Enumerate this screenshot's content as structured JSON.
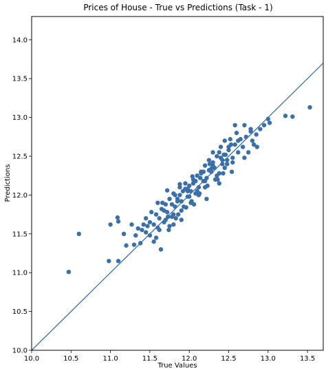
{
  "chart_data": {
    "type": "scatter",
    "title": "Prices of House - True vs Predictions (Task - 1)",
    "xlabel": "True Values",
    "ylabel": "Predictions",
    "xlim": [
      10.0,
      13.7
    ],
    "ylim": [
      10.0,
      14.3
    ],
    "xticks": [
      "10.0",
      "10.5",
      "11.0",
      "11.5",
      "12.0",
      "12.5",
      "13.0",
      "13.5"
    ],
    "yticks": [
      "10.0",
      "10.5",
      "11.0",
      "11.5",
      "12.0",
      "12.5",
      "13.0",
      "13.5",
      "14.0"
    ],
    "grid": false,
    "legend": "none",
    "marker_color": "#3a6fa8",
    "reference_line": {
      "x": [
        10.0,
        13.7
      ],
      "y": [
        10.0,
        13.7
      ],
      "color": "#3a6fa8"
    },
    "x": [
      10.47,
      10.6,
      10.98,
      11.0,
      11.09,
      11.1,
      11.1,
      11.17,
      11.2,
      11.27,
      11.3,
      11.32,
      11.35,
      11.38,
      11.4,
      11.42,
      11.45,
      11.47,
      11.5,
      11.52,
      11.55,
      11.58,
      11.6,
      11.62,
      11.65,
      11.68,
      11.7,
      11.72,
      11.75,
      11.78,
      11.8,
      11.82,
      11.85,
      11.88,
      11.9,
      11.92,
      11.95,
      11.98,
      12.0,
      12.02,
      12.05,
      12.08,
      12.1,
      12.12,
      12.15,
      12.18,
      12.2,
      12.22,
      12.25,
      12.28,
      12.3,
      12.32,
      12.35,
      12.38,
      12.4,
      12.42,
      12.45,
      12.48,
      12.5,
      12.52,
      12.55,
      12.58,
      12.6,
      12.62,
      12.65,
      12.68,
      12.7,
      12.72,
      12.75,
      12.78,
      12.8,
      12.82,
      12.85,
      12.9,
      12.95,
      13.0,
      13.02,
      13.22,
      13.31,
      13.53,
      11.55,
      11.62,
      11.7,
      11.75,
      11.8,
      11.85,
      11.9,
      11.95,
      12.0,
      12.05,
      12.1,
      12.15,
      12.2,
      12.25,
      12.3,
      12.35,
      12.4,
      12.45,
      12.5,
      12.55,
      11.5,
      11.6,
      11.68,
      11.73,
      11.78,
      11.83,
      11.88,
      11.93,
      11.98,
      12.03,
      12.08,
      12.13,
      12.18,
      12.23,
      12.28,
      12.33,
      12.38,
      12.43,
      12.48,
      12.53,
      11.72,
      11.8,
      11.88,
      11.96,
      12.04,
      12.12,
      12.2,
      12.28,
      12.36,
      12.44,
      11.45,
      11.58,
      11.66,
      11.74,
      11.82,
      11.9,
      11.98,
      12.06,
      12.14,
      12.22,
      12.3,
      12.38,
      12.46,
      12.54,
      12.62,
      12.7,
      12.78,
      12.86,
      11.64,
      11.86,
      12.02,
      12.26,
      12.42,
      12.58
    ],
    "y": [
      11.01,
      11.5,
      11.15,
      11.62,
      11.71,
      11.66,
      11.15,
      11.5,
      11.35,
      11.62,
      11.36,
      11.48,
      11.57,
      11.38,
      11.55,
      11.62,
      11.52,
      11.6,
      11.48,
      11.78,
      11.62,
      11.75,
      11.9,
      11.7,
      11.82,
      11.65,
      11.88,
      11.78,
      11.95,
      11.72,
      12.02,
      11.85,
      11.95,
      12.1,
      11.92,
      12.05,
      12.15,
      11.98,
      12.12,
      12.05,
      12.2,
      12.02,
      12.25,
      12.1,
      12.3,
      12.18,
      12.38,
      12.22,
      12.45,
      12.3,
      12.55,
      12.35,
      12.5,
      12.28,
      12.62,
      12.45,
      12.7,
      12.4,
      12.58,
      12.72,
      12.48,
      12.65,
      12.8,
      12.55,
      12.72,
      12.62,
      12.9,
      12.75,
      12.55,
      12.82,
      12.7,
      12.65,
      12.78,
      12.85,
      12.9,
      12.98,
      12.93,
      13.02,
      13.01,
      13.13,
      11.4,
      11.55,
      11.68,
      11.6,
      11.75,
      11.92,
      11.8,
      12.08,
      11.98,
      12.15,
      12.05,
      12.28,
      12.18,
      12.32,
      12.42,
      12.25,
      12.48,
      12.35,
      12.62,
      12.42,
      11.65,
      11.58,
      11.8,
      11.72,
      11.88,
      11.7,
      12.0,
      11.85,
      12.08,
      11.92,
      12.18,
      12.02,
      12.3,
      12.12,
      12.4,
      12.2,
      12.55,
      12.28,
      12.45,
      12.65,
      12.06,
      11.62,
      12.14,
      11.84,
      12.24,
      12.0,
      12.1,
      12.34,
      12.2,
      12.52,
      11.7,
      11.45,
      11.9,
      11.55,
      12.0,
      11.68,
      12.05,
      11.88,
      12.22,
      11.95,
      12.38,
      12.15,
      12.52,
      12.3,
      12.7,
      12.48,
      12.85,
      12.62,
      11.3,
      11.75,
      11.9,
      12.4,
      12.4,
      12.9
    ]
  }
}
